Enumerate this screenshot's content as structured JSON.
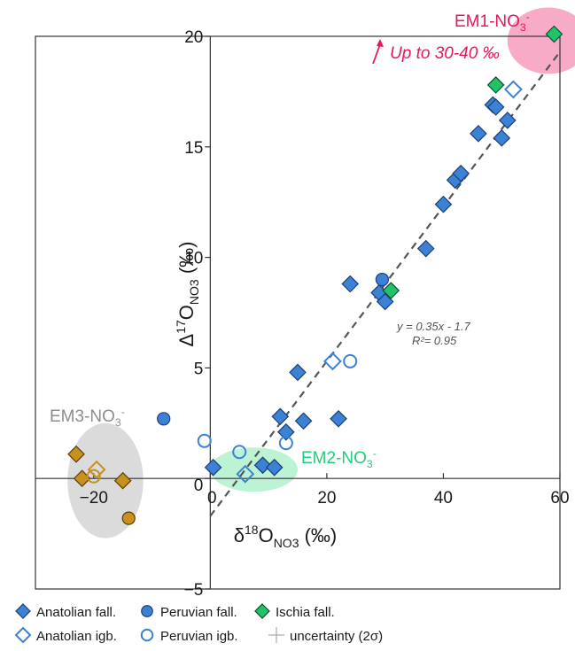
{
  "chart_data": {
    "type": "scatter",
    "title": "",
    "xlabel": {
      "main": "δ",
      "sup": "18",
      "sym": "O",
      "sub": "NO3",
      "unit": " (‰)"
    },
    "ylabel": {
      "main": "Δ",
      "sup": "17",
      "sym": "O",
      "sub": "NO3",
      "unit": " (‰)"
    },
    "xlim": [
      -30,
      60
    ],
    "ylim": [
      -5,
      20
    ],
    "x_ticks": [
      {
        "value": -20,
        "label": "−20"
      },
      {
        "value": 0,
        "label": "0"
      },
      {
        "value": 20,
        "label": "20"
      },
      {
        "value": 40,
        "label": "40"
      },
      {
        "value": 60,
        "label": "60"
      }
    ],
    "y_ticks": [
      {
        "value": -5,
        "label": "−5"
      },
      {
        "value": 0,
        "label": "0"
      },
      {
        "value": 5,
        "label": "5"
      },
      {
        "value": 10,
        "label": "10"
      },
      {
        "value": 15,
        "label": "15"
      },
      {
        "value": 20,
        "label": "20"
      }
    ],
    "regression": {
      "slope": 0.35,
      "intercept": -1.7,
      "x_range": [
        0,
        60
      ],
      "equation": "y = 0.35x - 1.7",
      "r2": "R²= 0.95",
      "color": "#555555"
    },
    "end_members": [
      {
        "label": "EM1-NO",
        "sub": "3",
        "sup": "-",
        "center": [
          58,
          19.8
        ],
        "radii": [
          7,
          1.5
        ],
        "color": "#f48fb4",
        "text_color": "#e8175d"
      },
      {
        "label": "EM2-NO",
        "sub": "3",
        "sup": "-",
        "center": [
          7.5,
          0.4
        ],
        "radii": [
          7.5,
          1.0
        ],
        "color": "#a6efc6",
        "text_color": "#22cc7a"
      },
      {
        "label": "EM3-NO",
        "sub": "3",
        "sup": "-",
        "center": [
          -18,
          -0.1
        ],
        "radii": [
          6.5,
          2.6
        ],
        "color": "#cfcfcf",
        "text_color": "#8e8e8e"
      }
    ],
    "annotation": {
      "text": "Up to 30-40 ‰",
      "color": "#e8175d"
    },
    "series": [
      {
        "name": "Anatolian fall.",
        "marker": "diamond",
        "filled": true,
        "color": "#3b82d6",
        "edge": "#1d3f73",
        "points": [
          [
            0.5,
            0.5
          ],
          [
            9,
            0.6
          ],
          [
            11,
            0.5
          ],
          [
            12,
            2.8
          ],
          [
            13,
            2.1
          ],
          [
            15,
            4.8
          ],
          [
            16,
            2.6
          ],
          [
            22,
            2.7
          ],
          [
            24,
            8.8
          ],
          [
            29,
            8.4
          ],
          [
            30,
            8.0
          ],
          [
            37,
            10.4
          ],
          [
            40,
            12.4
          ],
          [
            42,
            13.5
          ],
          [
            43,
            13.8
          ],
          [
            46,
            15.6
          ],
          [
            48.5,
            16.9
          ],
          [
            49,
            16.8
          ],
          [
            50,
            15.4
          ],
          [
            51,
            16.2
          ]
        ]
      },
      {
        "name": "Anatolian igb.",
        "marker": "diamond",
        "filled": false,
        "color": "#3b82d6",
        "edge": "#3b82d6",
        "points": [
          [
            6,
            0.2
          ],
          [
            21,
            5.3
          ],
          [
            52,
            17.6
          ]
        ]
      },
      {
        "name": "Peruvian fall.",
        "marker": "circle",
        "filled": true,
        "color": "#3b82d6",
        "edge": "#1d3f73",
        "points": [
          [
            -8,
            2.7
          ],
          [
            29.5,
            9.0
          ]
        ]
      },
      {
        "name": "Peruvian igb.",
        "marker": "circle",
        "filled": false,
        "color": "#3b82d6",
        "edge": "#3b82d6",
        "points": [
          [
            -1,
            1.7
          ],
          [
            5,
            1.2
          ],
          [
            13,
            1.6
          ],
          [
            24,
            5.3
          ]
        ]
      },
      {
        "name": "Ischia fall.",
        "marker": "diamond",
        "filled": true,
        "color": "#1fc46a",
        "edge": "#0d4f2c",
        "points": [
          [
            31,
            8.5
          ],
          [
            49,
            17.8
          ],
          [
            59,
            20.1
          ]
        ]
      },
      {
        "name": "EM3 samples",
        "marker": "diamond",
        "filled": true,
        "legend": false,
        "color": "#c8901c",
        "edge": "#5a3d05",
        "points": [
          [
            -23,
            1.1
          ],
          [
            -22,
            0
          ],
          [
            -15,
            -0.1
          ]
        ]
      },
      {
        "name": "EM3 samples open",
        "marker": "diamond",
        "filled": false,
        "legend": false,
        "color": "#c8901c",
        "edge": "#c8901c",
        "points": [
          [
            -19.5,
            0.4
          ]
        ]
      },
      {
        "name": "EM3 samples circle",
        "marker": "circle",
        "filled": true,
        "legend": false,
        "color": "#c8901c",
        "edge": "#5a3d05",
        "points": [
          [
            -14,
            -1.8
          ]
        ]
      },
      {
        "name": "EM3 samples circle open",
        "marker": "circle",
        "filled": false,
        "legend": false,
        "color": "#c8901c",
        "edge": "#c8901c",
        "points": [
          [
            -20,
            0.1
          ]
        ]
      }
    ],
    "legend": [
      {
        "label": "Anatolian fall.",
        "marker": "diamond",
        "filled": true,
        "color": "#3b82d6",
        "edge": "#1d3f73"
      },
      {
        "label": "Peruvian fall.",
        "marker": "circle",
        "filled": true,
        "color": "#3b82d6",
        "edge": "#1d3f73"
      },
      {
        "label": "Ischia fall.",
        "marker": "diamond",
        "filled": true,
        "color": "#1fc46a",
        "edge": "#0d4f2c"
      },
      {
        "label": "Anatolian igb.",
        "marker": "diamond",
        "filled": false,
        "color": "#3b82d6",
        "edge": "#3b82d6"
      },
      {
        "label": "Peruvian igb.",
        "marker": "circle",
        "filled": false,
        "color": "#3b82d6",
        "edge": "#3b82d6"
      },
      {
        "label": "uncertainty (2σ)",
        "marker": "cross",
        "filled": false,
        "color": "#9a9a9a",
        "edge": "#9a9a9a"
      }
    ],
    "legend_position": "bottom-left",
    "grid": false
  }
}
